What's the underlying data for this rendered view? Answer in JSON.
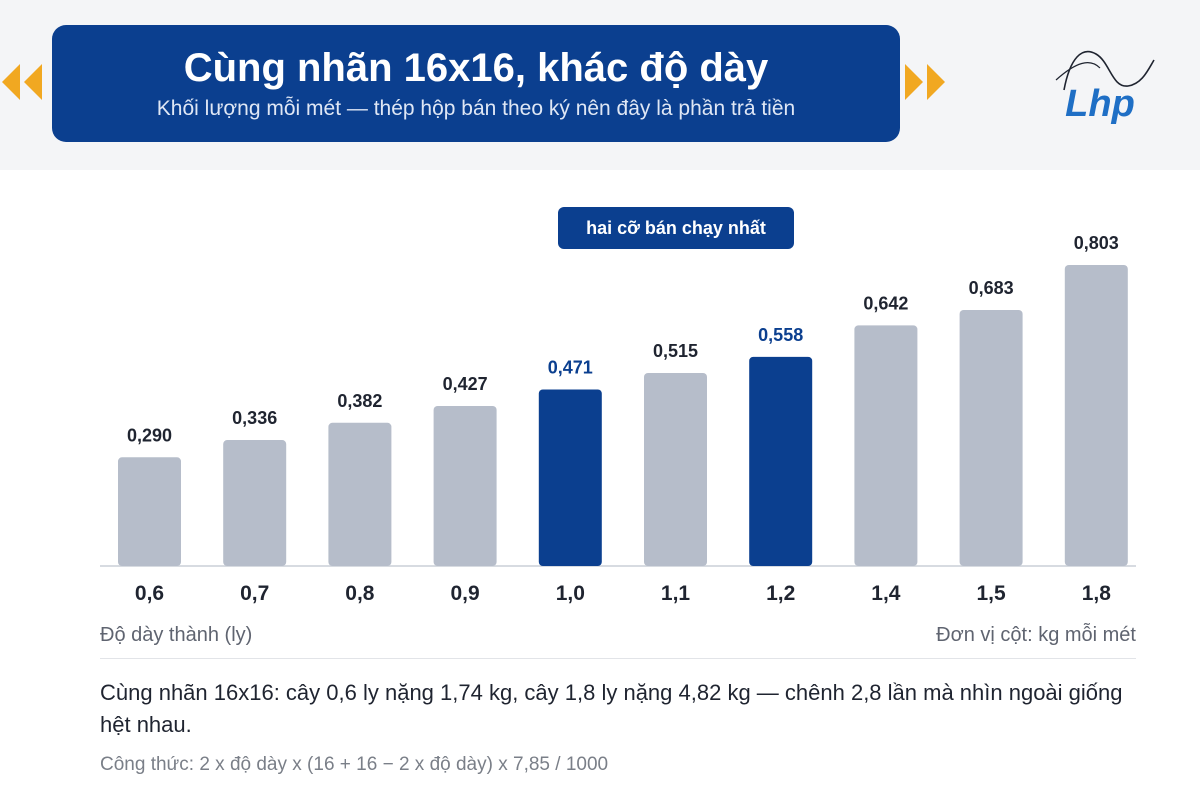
{
  "header": {
    "title": "Cùng nhãn 16x16, khác độ dày",
    "subtitle": "Khối lượng mỗi mét — thép hộp bán theo ký nên đây là phần trả tiền",
    "logo_text": "Lhp",
    "colors": {
      "banner": "#0b3f8f",
      "arrow": "#f1a821",
      "logo": "#1f6fc5"
    }
  },
  "badge": {
    "label": "hai cỡ bán chạy nhất"
  },
  "chart_data": {
    "type": "bar",
    "categories": [
      "0,6",
      "0,7",
      "0,8",
      "0,9",
      "1,0",
      "1,1",
      "1,2",
      "1,4",
      "1,5",
      "1,8"
    ],
    "values": [
      0.29,
      0.336,
      0.382,
      0.427,
      0.471,
      0.515,
      0.558,
      0.642,
      0.683,
      0.803
    ],
    "value_labels": [
      "0,290",
      "0,336",
      "0,382",
      "0,427",
      "0,471",
      "0,515",
      "0,558",
      "0,642",
      "0,683",
      "0,803"
    ],
    "highlighted": [
      "1,0",
      "1,2"
    ],
    "xlabel": "Độ dày thành (ly)",
    "ylabel": "Đơn vị cột: kg mỗi mét",
    "ylim": [
      0,
      0.9
    ],
    "grid": false,
    "colors": {
      "bar": "#b6bdca",
      "highlight": "#0b3f8f",
      "label": "#1f2430",
      "highlight_label": "#0b3f8f"
    }
  },
  "footer": {
    "note": "Cùng nhãn 16x16: cây 0,6 ly nặng 1,74 kg, cây 1,8 ly nặng 4,82 kg — chênh 2,8 lần mà nhìn ngoài giống hệt nhau.",
    "formula": "Công thức: 2 x độ dày x (16 + 16 − 2 x độ dày) x 7,85 / 1000"
  }
}
